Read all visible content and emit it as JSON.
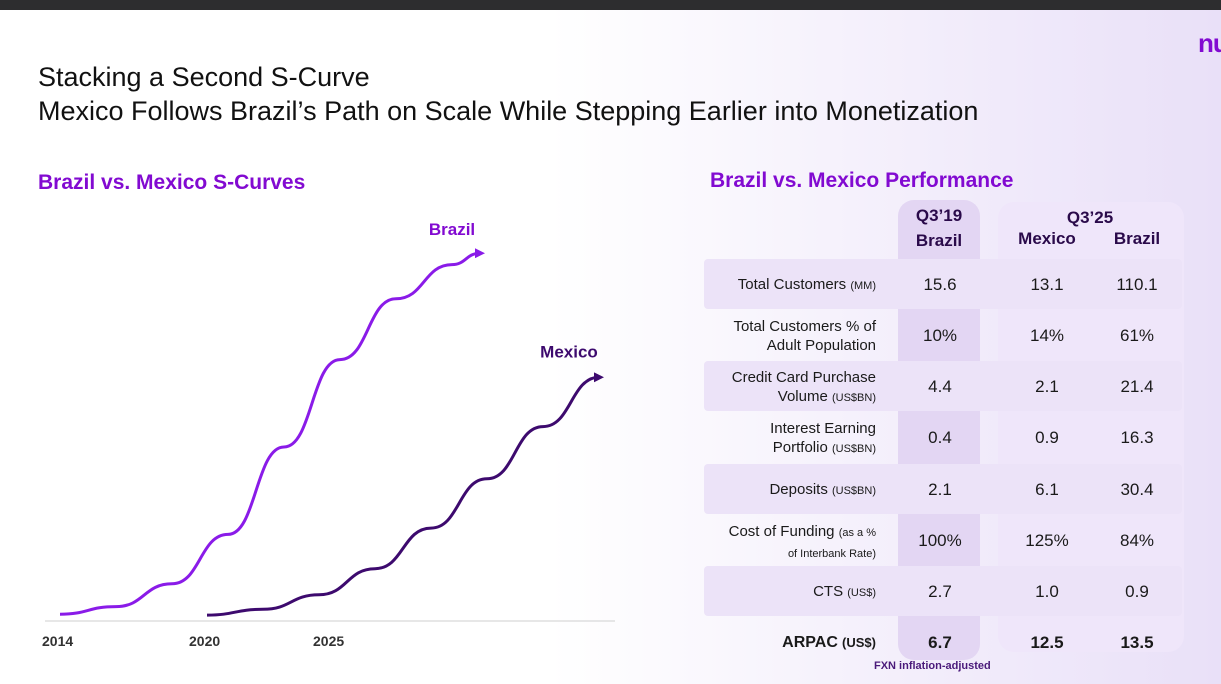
{
  "header": {
    "logo": "nu",
    "title_line1": "Stacking a Second S-Curve",
    "title_line2": "Mexico Follows Brazil’s Path on Scale While Stepping Earlier into Monetization"
  },
  "chart_data": {
    "type": "line",
    "title": "Brazil vs. Mexico S-Curves",
    "xlabel": "",
    "ylabel": "",
    "x_ticks": [
      "2014",
      "2020",
      "2025"
    ],
    "series": [
      {
        "name": "Brazil",
        "color": "#8a1be8",
        "start_year": 2014,
        "shape": "s-curve",
        "points": [
          [
            0,
            0.01
          ],
          [
            0.1,
            0.03
          ],
          [
            0.2,
            0.09
          ],
          [
            0.3,
            0.22
          ],
          [
            0.4,
            0.45
          ],
          [
            0.5,
            0.68
          ],
          [
            0.6,
            0.84
          ],
          [
            0.7,
            0.93
          ],
          [
            0.75,
            0.96
          ]
        ]
      },
      {
        "name": "Mexico",
        "color": "#3d0a6e",
        "start_year": 2020,
        "shape": "s-curve",
        "points": [
          [
            0,
            0.01
          ],
          [
            0.1,
            0.03
          ],
          [
            0.2,
            0.08
          ],
          [
            0.3,
            0.17
          ],
          [
            0.4,
            0.31
          ],
          [
            0.5,
            0.48
          ],
          [
            0.6,
            0.66
          ],
          [
            0.7,
            0.83
          ]
        ]
      }
    ],
    "grid": false,
    "legend": "inline labels at line ends"
  },
  "table": {
    "title": "Brazil vs. Mexico Performance",
    "headers": {
      "q319": "Q3’19",
      "q319_sub": "Brazil",
      "q325": "Q3’25",
      "q325_mexico": "Mexico",
      "q325_brazil": "Brazil"
    },
    "rows": [
      {
        "label": "Total Customers",
        "unit": "(MM)",
        "values": [
          "15.6",
          "13.1",
          "110.1"
        ]
      },
      {
        "label": "Total Customers % of",
        "label2": "Adult Population",
        "unit": "",
        "values": [
          "10%",
          "14%",
          "61%"
        ]
      },
      {
        "label": "Credit Card Purchase",
        "label2": "Volume",
        "unit": "(US$BN)",
        "values": [
          "4.4",
          "2.1",
          "21.4"
        ]
      },
      {
        "label": "Interest Earning",
        "label2": "Portfolio",
        "unit": "(US$BN)",
        "values": [
          "0.4",
          "0.9",
          "16.3"
        ]
      },
      {
        "label": "Deposits",
        "unit": "(US$BN)",
        "values": [
          "2.1",
          "6.1",
          "30.4"
        ]
      },
      {
        "label": "Cost of Funding",
        "unit": "(as a %",
        "unit2": "of Interbank Rate)",
        "values": [
          "100%",
          "125%",
          "84%"
        ]
      },
      {
        "label": "CTS",
        "unit": "(US$)",
        "values": [
          "2.7",
          "1.0",
          "0.9"
        ]
      },
      {
        "label": "ARPAC",
        "unit": "(US$)",
        "values": [
          "6.7",
          "12.5",
          "13.5"
        ]
      }
    ],
    "footnote": "FXN inflation-adjusted"
  },
  "colors": {
    "accent": "#820ad1",
    "brazil_line": "#8a1be8",
    "mexico_line": "#3d0a6e"
  }
}
